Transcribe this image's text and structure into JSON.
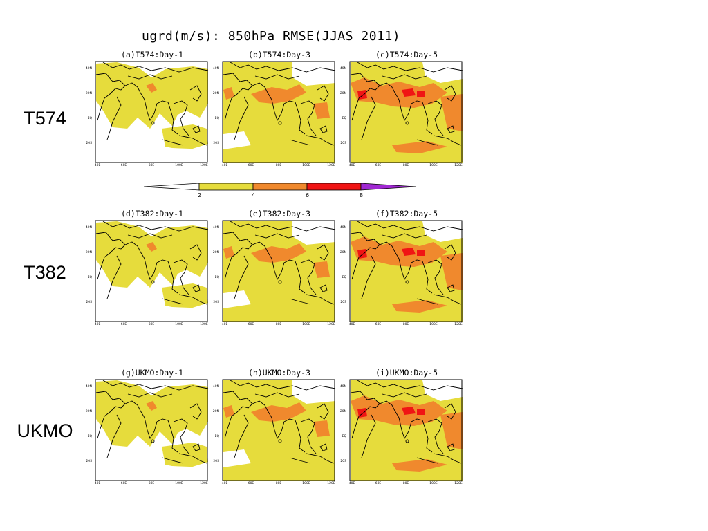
{
  "title": "ugrd(m/s): 850hPa RMSE(JJAS 2011)",
  "rows": [
    {
      "label": "T574"
    },
    {
      "label": "T382"
    },
    {
      "label": "UKMO"
    }
  ],
  "panels": [
    {
      "title": "(a)T574:Day-1",
      "level": 1
    },
    {
      "title": "(b)T574:Day-3",
      "level": 2
    },
    {
      "title": "(c)T574:Day-5",
      "level": 3
    },
    {
      "title": "(d)T382:Day-1",
      "level": 1
    },
    {
      "title": "(e)T382:Day-3",
      "level": 2
    },
    {
      "title": "(f)T382:Day-5",
      "level": 3
    },
    {
      "title": "(g)UKMO:Day-1",
      "level": 1
    },
    {
      "title": "(h)UKMO:Day-3",
      "level": 2
    },
    {
      "title": "(i)UKMO:Day-5",
      "level": 3
    }
  ],
  "axes": {
    "x_ticks": [
      "40E",
      "60E",
      "80E",
      "100E",
      "120E"
    ],
    "y_ticks": [
      "40N",
      "20N",
      "EQ",
      "20S"
    ]
  },
  "colorbar": {
    "ticks": [
      "2",
      "4",
      "6",
      "8"
    ],
    "colors": {
      "below": "#ffffff",
      "c1": "#e6dc3c",
      "c2": "#f0892d",
      "c3": "#f01414",
      "above": "#a028d2"
    }
  }
}
